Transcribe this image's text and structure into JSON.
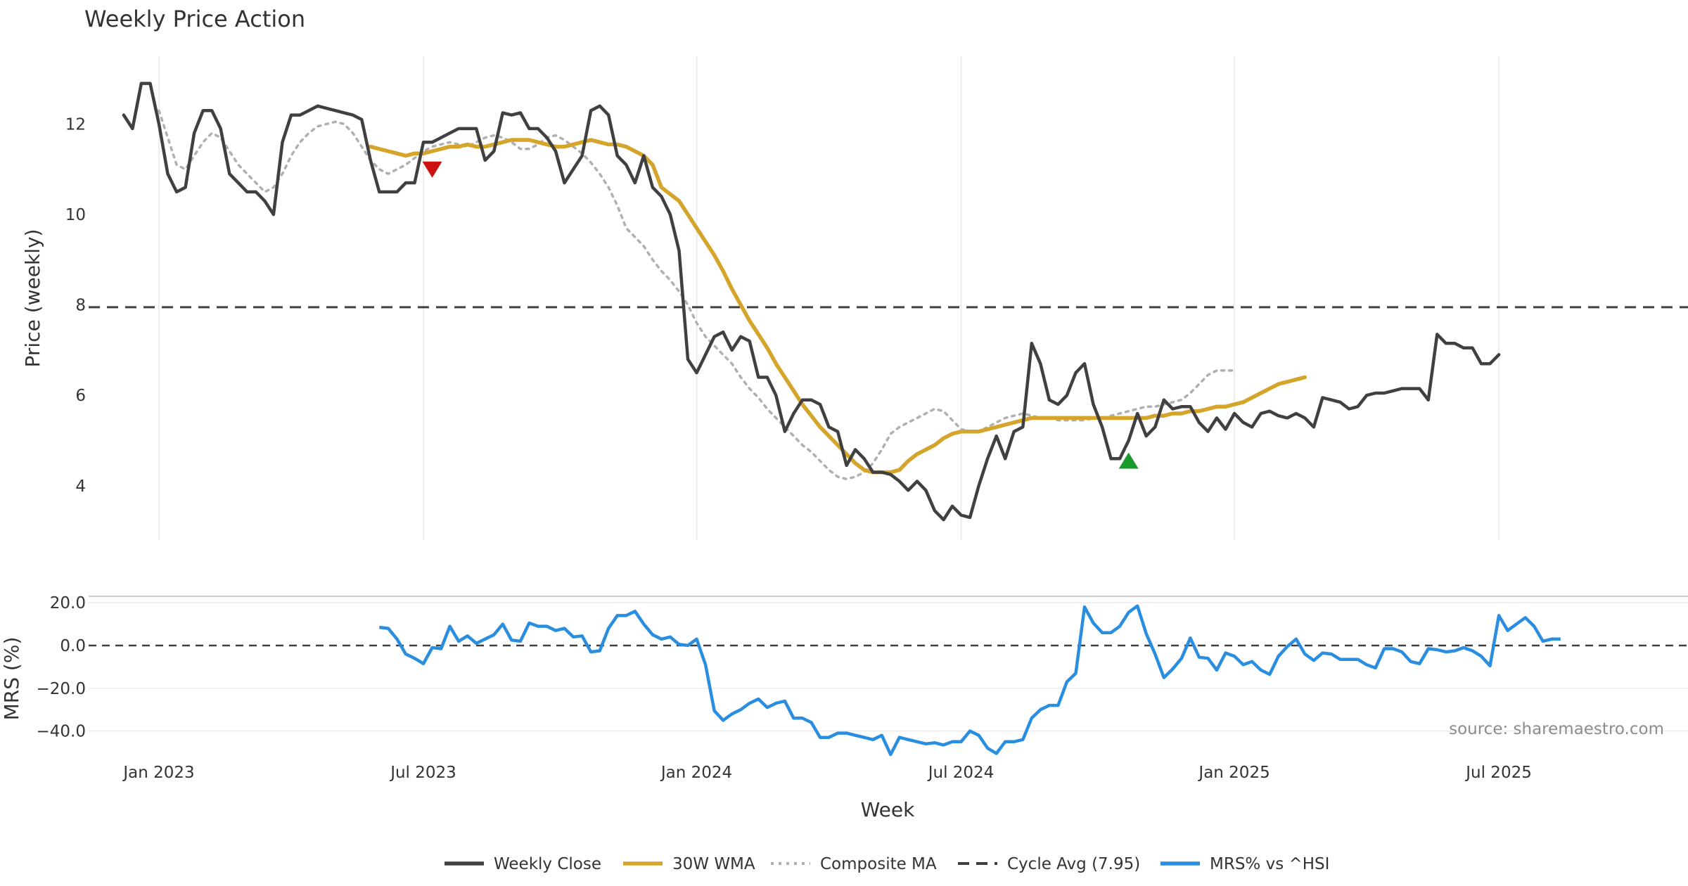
{
  "chart_data": {
    "type": "line",
    "title": "Weekly Price Action",
    "xlabel": "Week",
    "source_label": "source: sharemaestro.com",
    "x_tick_labels": [
      "Jan 2023",
      "Jul 2023",
      "Jan 2024",
      "Jul 2024",
      "Jan 2025",
      "Jul 2025"
    ],
    "x_tick_positions_week": [
      4,
      34,
      65,
      95,
      126,
      156
    ],
    "colors": {
      "close": "#404040",
      "wma": "#d4a52a",
      "composite": "#b0b0b0",
      "cycle": "#404040",
      "mrs": "#2a8ee0",
      "sell": "#cc1111",
      "buy": "#1a9a2a"
    },
    "price_panel": {
      "ylabel": "Price (weekly)",
      "ylim": [
        2.8,
        13.5
      ],
      "y_ticks": [
        4,
        6,
        8,
        10,
        12
      ],
      "cycle_avg": 7.95,
      "series": [
        {
          "name": "Weekly Close",
          "start_week": 0,
          "values": [
            12.2,
            11.9,
            12.9,
            12.9,
            12.0,
            10.9,
            10.5,
            10.6,
            11.8,
            12.3,
            12.3,
            11.9,
            10.9,
            10.7,
            10.5,
            10.5,
            10.3,
            10.0,
            11.6,
            12.2,
            12.2,
            12.3,
            12.4,
            12.35,
            12.3,
            12.25,
            12.2,
            12.1,
            11.2,
            10.5,
            10.5,
            10.5,
            10.7,
            10.7,
            11.6,
            11.6,
            11.7,
            11.8,
            11.9,
            11.9,
            11.9,
            11.2,
            11.4,
            12.25,
            12.2,
            12.25,
            11.9,
            11.9,
            11.7,
            11.4,
            10.7,
            11.0,
            11.3,
            12.3,
            12.4,
            12.2,
            11.3,
            11.1,
            10.7,
            11.3,
            10.6,
            10.4,
            10.0,
            9.2,
            6.8,
            6.5,
            6.9,
            7.3,
            7.4,
            7.0,
            7.3,
            7.2,
            6.4,
            6.4,
            6.0,
            5.2,
            5.6,
            5.9,
            5.9,
            5.8,
            5.3,
            5.2,
            4.45,
            4.8,
            4.6,
            4.3,
            4.3,
            4.25,
            4.1,
            3.9,
            4.1,
            3.9,
            3.45,
            3.25,
            3.55,
            3.35,
            3.3,
            4.0,
            4.6,
            5.1,
            4.6,
            5.2,
            5.3,
            7.15,
            6.7,
            5.9,
            5.8,
            6.0,
            6.5,
            6.7,
            5.8,
            5.3,
            4.6,
            4.6,
            5.0,
            5.6,
            5.1,
            5.3,
            5.9,
            5.7,
            5.75,
            5.75,
            5.4,
            5.2,
            5.5,
            5.25,
            5.6,
            5.4,
            5.3,
            5.6,
            5.65,
            5.55,
            5.5,
            5.6,
            5.5,
            5.3,
            5.95,
            5.9,
            5.85,
            5.7,
            5.75,
            6.0,
            6.05,
            6.05,
            6.1,
            6.15,
            6.15,
            6.15,
            5.9,
            7.35,
            7.15,
            7.15,
            7.05,
            7.05,
            6.7,
            6.7,
            6.9
          ]
        },
        {
          "name": "30W WMA",
          "start_week": 28,
          "values": [
            11.5,
            11.45,
            11.4,
            11.35,
            11.3,
            11.35,
            11.35,
            11.4,
            11.45,
            11.5,
            11.5,
            11.55,
            11.5,
            11.5,
            11.55,
            11.6,
            11.65,
            11.65,
            11.65,
            11.6,
            11.55,
            11.5,
            11.5,
            11.55,
            11.6,
            11.65,
            11.6,
            11.55,
            11.55,
            11.5,
            11.4,
            11.3,
            11.1,
            10.6,
            10.45,
            10.3,
            10.0,
            9.7,
            9.4,
            9.1,
            8.75,
            8.35,
            8.0,
            7.65,
            7.35,
            7.05,
            6.7,
            6.4,
            6.1,
            5.8,
            5.55,
            5.3,
            5.1,
            4.9,
            4.7,
            4.5,
            4.35,
            4.3,
            4.3,
            4.3,
            4.35,
            4.55,
            4.7,
            4.8,
            4.9,
            5.05,
            5.15,
            5.2,
            5.2,
            5.2,
            5.25,
            5.3,
            5.35,
            5.4,
            5.45,
            5.5,
            5.5,
            5.5,
            5.5,
            5.5,
            5.5,
            5.5,
            5.5,
            5.5,
            5.5,
            5.5,
            5.5,
            5.5,
            5.5,
            5.55,
            5.55,
            5.6,
            5.6,
            5.65,
            5.65,
            5.7,
            5.75,
            5.75,
            5.8,
            5.85,
            5.95,
            6.05,
            6.15,
            6.25,
            6.3,
            6.35,
            6.4
          ]
        },
        {
          "name": "Composite MA",
          "start_week": 4,
          "values": [
            12.3,
            11.7,
            11.1,
            11.0,
            11.3,
            11.6,
            11.8,
            11.7,
            11.4,
            11.1,
            10.9,
            10.7,
            10.5,
            10.6,
            10.9,
            11.3,
            11.6,
            11.8,
            11.95,
            12.0,
            12.05,
            12.0,
            11.8,
            11.5,
            11.2,
            11.0,
            10.9,
            11.0,
            11.1,
            11.25,
            11.4,
            11.5,
            11.55,
            11.6,
            11.55,
            11.5,
            11.6,
            11.7,
            11.75,
            11.7,
            11.6,
            11.45,
            11.45,
            11.55,
            11.7,
            11.75,
            11.65,
            11.5,
            11.35,
            11.15,
            10.9,
            10.6,
            10.2,
            9.7,
            9.5,
            9.3,
            9.0,
            8.75,
            8.55,
            8.3,
            8.0,
            7.6,
            7.3,
            7.1,
            6.9,
            6.7,
            6.4,
            6.15,
            5.95,
            5.7,
            5.5,
            5.3,
            5.1,
            4.9,
            4.75,
            4.55,
            4.35,
            4.2,
            4.15,
            4.2,
            4.3,
            4.5,
            4.8,
            5.15,
            5.3,
            5.4,
            5.5,
            5.6,
            5.7,
            5.65,
            5.45,
            5.25,
            5.2,
            5.2,
            5.3,
            5.4,
            5.5,
            5.55,
            5.6,
            5.55,
            5.5,
            5.5,
            5.45,
            5.45,
            5.45,
            5.45,
            5.5,
            5.5,
            5.55,
            5.6,
            5.65,
            5.7,
            5.75,
            5.75,
            5.8,
            5.85,
            5.9,
            6.05,
            6.25,
            6.45,
            6.55,
            6.55,
            6.55
          ]
        }
      ],
      "markers": [
        {
          "type": "sell",
          "week": 35,
          "value": 11.0
        },
        {
          "type": "buy",
          "week": 114,
          "value": 4.55
        }
      ]
    },
    "mrs_panel": {
      "ylabel": "MRS (%)",
      "ylim": [
        -50,
        23
      ],
      "y_ticks": [
        20.0,
        0.0,
        -20.0,
        -40.0
      ],
      "y_tick_labels": [
        "20.0",
        "0.0",
        "−20.0",
        "−40.0"
      ],
      "zero_line": 0,
      "series": [
        {
          "name": "MRS% vs ^HSI",
          "start_week": 29,
          "values": [
            8.5,
            8,
            3,
            -4,
            -6,
            -8.5,
            -1,
            -1.5,
            9,
            2,
            4.5,
            1,
            3,
            5,
            10,
            2.5,
            2,
            10.5,
            9,
            9,
            7,
            8,
            4,
            4.5,
            -3,
            -2.5,
            8,
            14,
            14,
            16,
            10,
            5,
            3,
            4,
            0.5,
            0,
            3,
            -9,
            -30.5,
            -35,
            -32,
            -30,
            -27,
            -25,
            -29,
            -27,
            -26,
            -34,
            -34,
            -36,
            -43,
            -43,
            -41,
            -41,
            -42,
            -43,
            -44,
            -42,
            -51,
            -43,
            -44,
            -45,
            -46,
            -45.5,
            -46.5,
            -45,
            -45,
            -40,
            -42,
            -48,
            -50.5,
            -45,
            -45,
            -44,
            -34,
            -30,
            -28,
            -28,
            -17,
            -13,
            18,
            10.5,
            6,
            6,
            9,
            15.5,
            18.5,
            5.5,
            -4,
            -15,
            -11,
            -6,
            3.5,
            -5.5,
            -6,
            -11.5,
            -3.5,
            -5,
            -9,
            -7.5,
            -11.5,
            -13.5,
            -5,
            -0.5,
            3,
            -4,
            -7,
            -3.5,
            -4,
            -6.5,
            -6.5,
            -6.5,
            -9,
            -10.5,
            -1.5,
            -1.5,
            -3,
            -7.5,
            -8.5,
            -1.5,
            -2,
            -3,
            -2.5,
            -1,
            -2.5,
            -5,
            -9.5,
            14,
            7,
            10,
            13,
            9,
            2,
            3,
            3
          ]
        }
      ]
    },
    "legend": [
      {
        "label": "Weekly Close",
        "style": "solid",
        "color": "#404040"
      },
      {
        "label": "30W WMA",
        "style": "solid",
        "color": "#d4a52a"
      },
      {
        "label": "Composite MA",
        "style": "dotted",
        "color": "#b0b0b0"
      },
      {
        "label": "Cycle Avg (7.95)",
        "style": "dashed",
        "color": "#404040"
      },
      {
        "label": "MRS% vs ^HSI",
        "style": "solid",
        "color": "#2a8ee0"
      }
    ]
  }
}
